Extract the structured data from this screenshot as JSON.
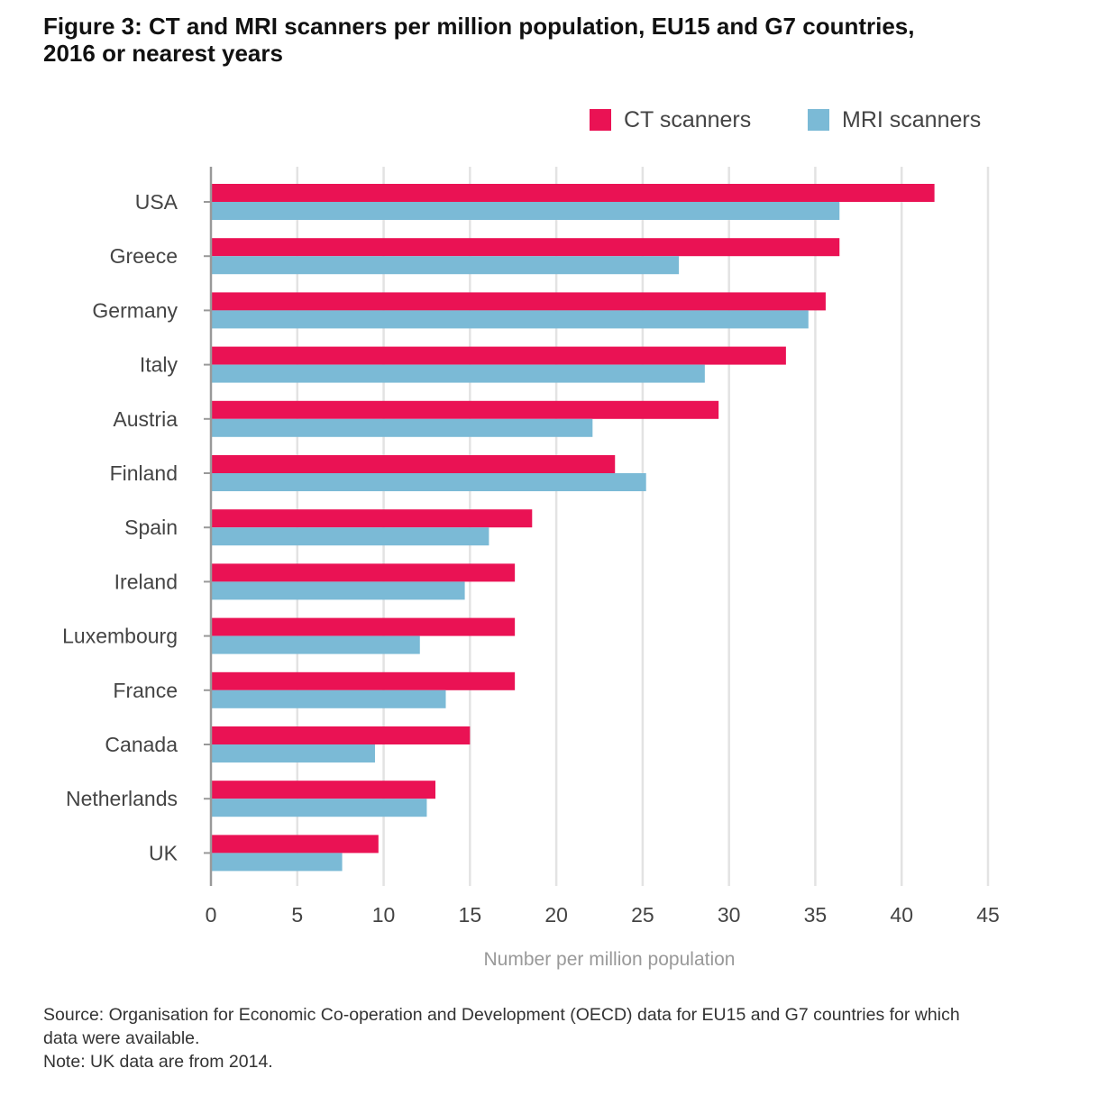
{
  "title": {
    "line1": "Figure 3: CT and MRI scanners per million population, EU15 and G7 countries,",
    "line2": "2016 or nearest years"
  },
  "legend": [
    {
      "label": "CT scanners",
      "color": "#ea1254"
    },
    {
      "label": "MRI scanners",
      "color": "#7bbad6"
    }
  ],
  "chart_data": {
    "type": "bar",
    "orientation": "horizontal",
    "categories": [
      "USA",
      "Greece",
      "Germany",
      "Italy",
      "Austria",
      "Finland",
      "Spain",
      "Ireland",
      "Luxembourg",
      "France",
      "Canada",
      "Netherlands",
      "UK"
    ],
    "series": [
      {
        "name": "CT scanners",
        "color": "#ea1254",
        "values": [
          41.9,
          36.4,
          35.6,
          33.3,
          29.4,
          23.4,
          18.6,
          17.6,
          17.6,
          17.6,
          15.0,
          13.0,
          9.7
        ]
      },
      {
        "name": "MRI scanners",
        "color": "#7bbad6",
        "values": [
          36.4,
          27.1,
          34.6,
          28.6,
          22.1,
          25.2,
          16.1,
          14.7,
          12.1,
          13.6,
          9.5,
          12.5,
          7.6
        ]
      }
    ],
    "xticks": [
      "0",
      "5",
      "10",
      "15",
      "20",
      "25",
      "30",
      "35",
      "40",
      "45"
    ],
    "xlim": [
      0,
      45
    ],
    "xlabel": "Number per million population",
    "ylabel": "",
    "grid": true,
    "legend_position": "top-right"
  },
  "footer": {
    "source_line1": "Source: Organisation for Economic Co-operation and Development (OECD) data for EU15 and G7 countries for which",
    "source_line2": "data were available.",
    "note": "Note: UK data are from 2014."
  }
}
